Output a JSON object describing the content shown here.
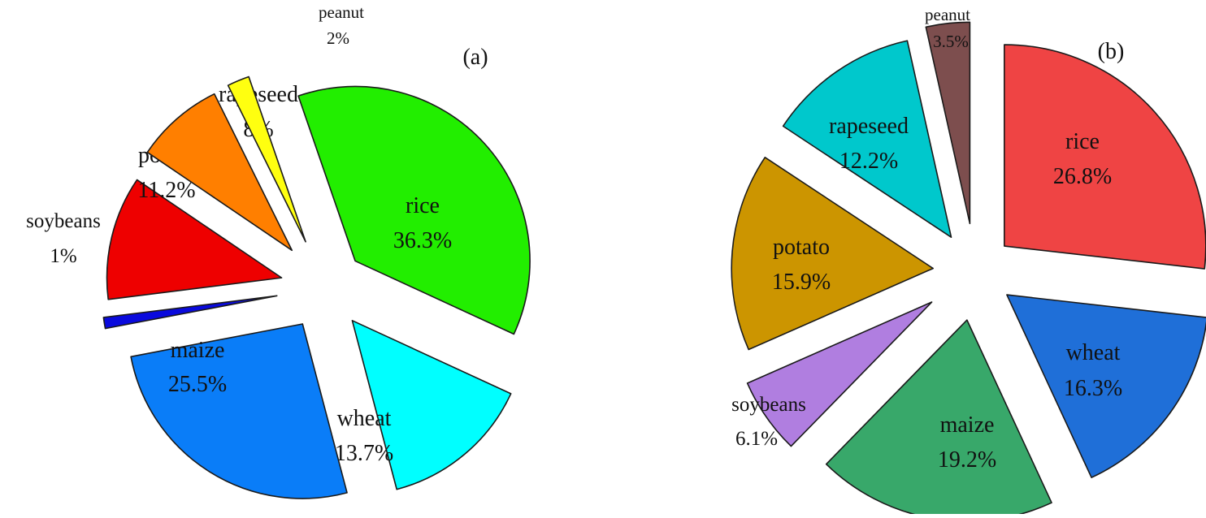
{
  "chart_data": [
    {
      "type": "pie",
      "panel_label": "(a)",
      "slices": [
        {
          "name": "rice",
          "value": 36.3,
          "label": "36.3%",
          "color": "#22ee00"
        },
        {
          "name": "wheat",
          "value": 13.7,
          "label": "13.7%",
          "color": "#00ffff"
        },
        {
          "name": "maize",
          "value": 25.5,
          "label": "25.5%",
          "color": "#0a7df8"
        },
        {
          "name": "soybeans",
          "value": 1,
          "label": "1%",
          "color": "#0a0add"
        },
        {
          "name": "potato",
          "value": 11.2,
          "label": "11.2%",
          "color": "#ee0000"
        },
        {
          "name": "rapeseed",
          "value": 8,
          "label": "8%",
          "color": "#ff7f00"
        },
        {
          "name": "peanut",
          "value": 2,
          "label": "2%",
          "color": "#ffff10"
        }
      ]
    },
    {
      "type": "pie",
      "panel_label": "(b)",
      "slices": [
        {
          "name": "rice",
          "value": 26.8,
          "label": "26.8%",
          "color": "#ef4444"
        },
        {
          "name": "wheat",
          "value": 16.3,
          "label": "16.3%",
          "color": "#1f6fd8"
        },
        {
          "name": "maize",
          "value": 19.2,
          "label": "19.2%",
          "color": "#38a86a"
        },
        {
          "name": "soybeans",
          "value": 6.1,
          "label": "6.1%",
          "color": "#b07ee0"
        },
        {
          "name": "potato",
          "value": 15.9,
          "label": "15.9%",
          "color": "#cc9500"
        },
        {
          "name": "rapeseed",
          "value": 12.2,
          "label": "12.2%",
          "color": "#00c8cc"
        },
        {
          "name": "peanut",
          "value": 3.5,
          "label": "3.5%",
          "color": "#7d4e4e"
        }
      ]
    }
  ]
}
